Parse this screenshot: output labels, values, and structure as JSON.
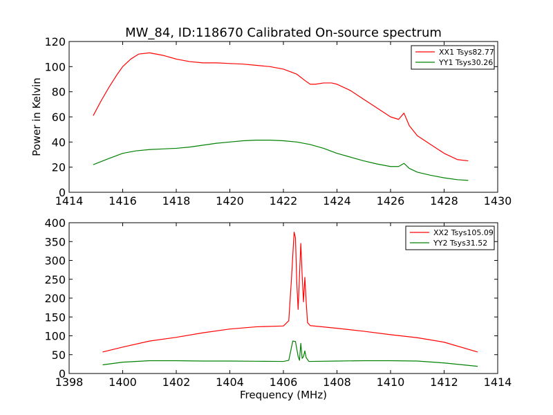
{
  "title": "MW_84, ID:118670 Calibrated On-source spectrum",
  "chart_data": [
    {
      "type": "line",
      "title": "MW_84, ID:118670 Calibrated On-source spectrum",
      "xlabel": "",
      "ylabel": "Power in Kelvin",
      "xlim": [
        1414,
        1430
      ],
      "ylim": [
        0,
        120
      ],
      "xticks": [
        "1414",
        "1416",
        "1418",
        "1420",
        "1422",
        "1424",
        "1426",
        "1428",
        "1430"
      ],
      "yticks": [
        "0",
        "20",
        "40",
        "60",
        "80",
        "100",
        "120"
      ],
      "grid": false,
      "legend": "top-right",
      "series": [
        {
          "name": "XX1 Tsys82.77",
          "color": "#ff0000",
          "x": [
            1414.9,
            1415.2,
            1415.5,
            1415.8,
            1416.0,
            1416.3,
            1416.6,
            1417.0,
            1417.5,
            1418.0,
            1418.5,
            1419.0,
            1419.5,
            1420.0,
            1420.5,
            1421.0,
            1421.5,
            1422.0,
            1422.5,
            1422.8,
            1423.0,
            1423.2,
            1423.5,
            1423.8,
            1424.0,
            1424.5,
            1425.0,
            1425.5,
            1426.0,
            1426.3,
            1426.5,
            1426.7,
            1427.0,
            1427.5,
            1428.0,
            1428.5,
            1428.9
          ],
          "y": [
            61,
            73,
            84,
            94,
            100,
            106,
            110,
            111,
            109,
            106,
            104,
            103,
            103,
            102.5,
            102,
            101,
            100,
            98,
            94,
            89,
            86,
            86,
            87,
            87,
            86,
            81,
            74,
            67,
            60,
            58,
            63,
            53,
            45,
            38,
            31,
            26,
            25
          ]
        },
        {
          "name": "YY1 Tsys30.26",
          "color": "#008000",
          "x": [
            1414.9,
            1415.5,
            1416.0,
            1416.5,
            1417.0,
            1417.5,
            1418.0,
            1418.5,
            1419.0,
            1419.5,
            1420.0,
            1420.5,
            1421.0,
            1421.5,
            1422.0,
            1422.5,
            1423.0,
            1423.5,
            1424.0,
            1424.5,
            1425.0,
            1425.5,
            1426.0,
            1426.3,
            1426.5,
            1426.7,
            1427.0,
            1427.5,
            1428.0,
            1428.5,
            1428.9
          ],
          "y": [
            22,
            27,
            31,
            33,
            34,
            34.5,
            35,
            36,
            37.5,
            39,
            40,
            41,
            41.5,
            41.5,
            41,
            40,
            38,
            35,
            31,
            28,
            25,
            22.5,
            20.5,
            20.5,
            23,
            19,
            16,
            13.5,
            11.5,
            10,
            9.5
          ]
        }
      ]
    },
    {
      "type": "line",
      "title": "",
      "xlabel": "Frequency (MHz)",
      "ylabel": "",
      "xlim": [
        1398,
        1414
      ],
      "ylim": [
        0,
        400
      ],
      "xticks": [
        "1398",
        "1400",
        "1402",
        "1404",
        "1406",
        "1408",
        "1410",
        "1412",
        "1414"
      ],
      "yticks": [
        "0",
        "50",
        "100",
        "150",
        "200",
        "250",
        "300",
        "350",
        "400"
      ],
      "grid": false,
      "legend": "top-right",
      "series": [
        {
          "name": "XX2 Tsys105.09",
          "color": "#ff0000",
          "x": [
            1399.25,
            1400.0,
            1401.0,
            1402.0,
            1403.0,
            1404.0,
            1405.0,
            1406.0,
            1406.2,
            1406.3,
            1406.4,
            1406.45,
            1406.5,
            1406.55,
            1406.6,
            1406.65,
            1406.7,
            1406.75,
            1406.8,
            1406.85,
            1406.9,
            1407.0,
            1408.0,
            1409.0,
            1410.0,
            1411.0,
            1412.0,
            1413.25
          ],
          "y": [
            57,
            70,
            86,
            96,
            108,
            118,
            124,
            126,
            140,
            250,
            375,
            360,
            240,
            170,
            260,
            345,
            260,
            190,
            255,
            190,
            135,
            127,
            120,
            112,
            103,
            95,
            83,
            57
          ]
        },
        {
          "name": "YY2 Tsys31.52",
          "color": "#008000",
          "x": [
            1399.25,
            1400.0,
            1401.0,
            1402.0,
            1403.0,
            1404.0,
            1405.0,
            1406.0,
            1406.2,
            1406.35,
            1406.45,
            1406.55,
            1406.6,
            1406.65,
            1406.7,
            1406.75,
            1406.8,
            1406.85,
            1406.95,
            1407.0,
            1408.0,
            1409.0,
            1410.0,
            1411.0,
            1412.0,
            1413.25
          ],
          "y": [
            23,
            30,
            34,
            34,
            33,
            33,
            32.5,
            32,
            35,
            86,
            85,
            45,
            35,
            80,
            40,
            45,
            60,
            42,
            32,
            32,
            33,
            34,
            34,
            33,
            28,
            19
          ]
        }
      ]
    }
  ]
}
